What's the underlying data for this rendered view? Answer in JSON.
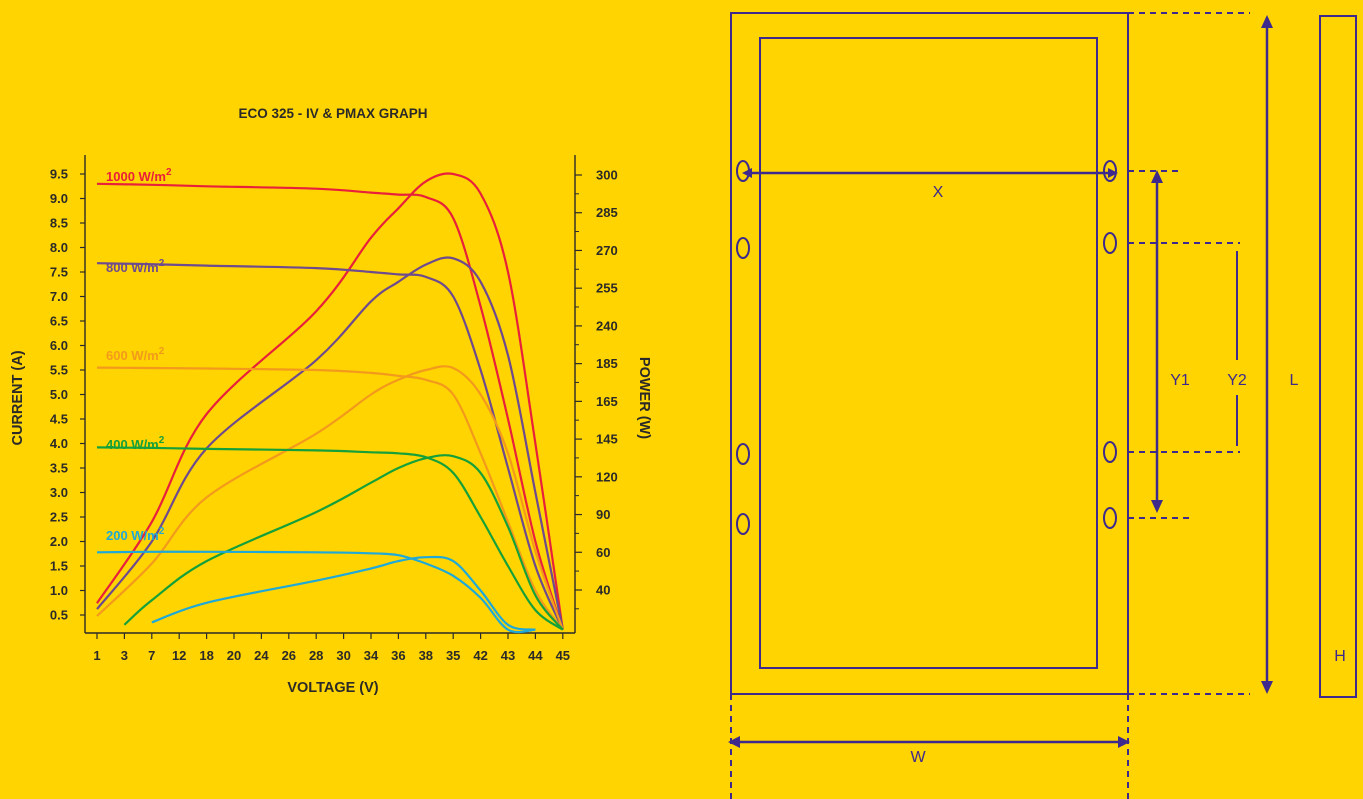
{
  "colors": {
    "background": "#ffd400",
    "ink": "#2b2a28",
    "diagram": "#3d2a8c",
    "irradiance_1000": "#e8203b",
    "irradiance_800": "#6e4a8e",
    "irradiance_600": "#f39a1c",
    "irradiance_400": "#15a03a",
    "irradiance_200": "#1ea9d8"
  },
  "chart_data": {
    "type": "line",
    "title": "ECO 325 - IV & PMAX GRAPH",
    "xlabel": "VOLTAGE (V)",
    "ylabel": "CURRENT (A)",
    "y2label": "POWER (W)",
    "x_ticks": [
      "1",
      "3",
      "7",
      "12",
      "18",
      "20",
      "24",
      "26",
      "28",
      "30",
      "34",
      "36",
      "38",
      "35",
      "42",
      "43",
      "44",
      "45"
    ],
    "y_ticks": [
      "0.5",
      "1.0",
      "1.5",
      "2.0",
      "2.5",
      "3.0",
      "3.5",
      "4.0",
      "4.5",
      "5.0",
      "5.5",
      "6.0",
      "6.5",
      "7.0",
      "7.5",
      "8.0",
      "8.5",
      "9.0",
      "9.5"
    ],
    "y_range": [
      0.5,
      9.5
    ],
    "y2_ticks": [
      "40",
      "60",
      "90",
      "120",
      "145",
      "165",
      "185",
      "240",
      "255",
      "270",
      "285",
      "300"
    ],
    "grid": false,
    "series": [
      {
        "name": "1000 W/m",
        "superscript": "2",
        "color_key": "irradiance_1000",
        "iv": [
          [
            1,
            9.3
          ],
          [
            7,
            9.28
          ],
          [
            18,
            9.25
          ],
          [
            28,
            9.2
          ],
          [
            34,
            9.12
          ],
          [
            36,
            9.08
          ],
          [
            38,
            9.03
          ],
          [
            35,
            8.6
          ],
          [
            42,
            6.8
          ],
          [
            43,
            4.5
          ],
          [
            44,
            2.0
          ],
          [
            45,
            0.2
          ]
        ],
        "power": [
          [
            1,
            0.74
          ],
          [
            7,
            2.4
          ],
          [
            18,
            4.6
          ],
          [
            28,
            6.7
          ],
          [
            34,
            8.2
          ],
          [
            36,
            8.8
          ],
          [
            38,
            9.35
          ],
          [
            35,
            9.5
          ],
          [
            42,
            9.1
          ],
          [
            43,
            7.5
          ],
          [
            44,
            4.0
          ],
          [
            45,
            0.2
          ]
        ]
      },
      {
        "name": "800 W/m",
        "superscript": "2",
        "color_key": "irradiance_800",
        "iv": [
          [
            1,
            7.68
          ],
          [
            7,
            7.66
          ],
          [
            18,
            7.63
          ],
          [
            28,
            7.58
          ],
          [
            34,
            7.5
          ],
          [
            36,
            7.45
          ],
          [
            38,
            7.4
          ],
          [
            35,
            7.0
          ],
          [
            42,
            5.5
          ],
          [
            43,
            3.5
          ],
          [
            44,
            1.5
          ],
          [
            45,
            0.2
          ]
        ],
        "power": [
          [
            1,
            0.62
          ],
          [
            7,
            2.0
          ],
          [
            18,
            3.9
          ],
          [
            28,
            5.7
          ],
          [
            34,
            6.9
          ],
          [
            36,
            7.3
          ],
          [
            38,
            7.65
          ],
          [
            35,
            7.78
          ],
          [
            42,
            7.3
          ],
          [
            43,
            5.8
          ],
          [
            44,
            3.0
          ],
          [
            45,
            0.2
          ]
        ]
      },
      {
        "name": "600 W/m",
        "superscript": "2",
        "color_key": "irradiance_600",
        "iv": [
          [
            1,
            5.55
          ],
          [
            7,
            5.54
          ],
          [
            18,
            5.53
          ],
          [
            28,
            5.5
          ],
          [
            34,
            5.44
          ],
          [
            36,
            5.38
          ],
          [
            38,
            5.3
          ],
          [
            35,
            5.0
          ],
          [
            42,
            3.8
          ],
          [
            43,
            2.4
          ],
          [
            44,
            1.0
          ],
          [
            45,
            0.15
          ]
        ],
        "power": [
          [
            1,
            0.48
          ],
          [
            7,
            1.55
          ],
          [
            18,
            2.9
          ],
          [
            28,
            4.2
          ],
          [
            34,
            5.0
          ],
          [
            36,
            5.3
          ],
          [
            38,
            5.5
          ],
          [
            35,
            5.54
          ],
          [
            42,
            5.0
          ],
          [
            43,
            3.8
          ],
          [
            44,
            1.8
          ],
          [
            45,
            0.15
          ]
        ]
      },
      {
        "name": "400 W/m",
        "superscript": "2",
        "color_key": "irradiance_400",
        "iv": [
          [
            1,
            3.92
          ],
          [
            7,
            3.91
          ],
          [
            18,
            3.89
          ],
          [
            28,
            3.86
          ],
          [
            34,
            3.82
          ],
          [
            36,
            3.8
          ],
          [
            38,
            3.72
          ],
          [
            35,
            3.4
          ],
          [
            42,
            2.5
          ],
          [
            43,
            1.5
          ],
          [
            44,
            0.6
          ],
          [
            45,
            0.1
          ]
        ],
        "power": [
          [
            3,
            0.3
          ],
          [
            7,
            0.8
          ],
          [
            18,
            1.6
          ],
          [
            28,
            2.6
          ],
          [
            34,
            3.2
          ],
          [
            36,
            3.5
          ],
          [
            38,
            3.7
          ],
          [
            35,
            3.74
          ],
          [
            42,
            3.4
          ],
          [
            43,
            2.3
          ],
          [
            44,
            0.9
          ],
          [
            45,
            0.1
          ]
        ]
      },
      {
        "name": "200 W/m",
        "superscript": "2",
        "color_key": "irradiance_200",
        "iv": [
          [
            1,
            1.78
          ],
          [
            7,
            1.79
          ],
          [
            18,
            1.79
          ],
          [
            28,
            1.78
          ],
          [
            34,
            1.76
          ],
          [
            36,
            1.72
          ],
          [
            38,
            1.55
          ],
          [
            35,
            1.3
          ],
          [
            42,
            0.85
          ],
          [
            43,
            0.2
          ],
          [
            44,
            0.1
          ]
        ],
        "power": [
          [
            7,
            0.35
          ],
          [
            18,
            0.75
          ],
          [
            28,
            1.2
          ],
          [
            34,
            1.45
          ],
          [
            36,
            1.6
          ],
          [
            38,
            1.68
          ],
          [
            35,
            1.6
          ],
          [
            42,
            1.0
          ],
          [
            43,
            0.3
          ],
          [
            44,
            0.2
          ]
        ]
      }
    ]
  },
  "diagram": {
    "labels": {
      "x": "X",
      "y1": "Y1",
      "y2": "Y2",
      "l": "L",
      "w": "W",
      "h": "H"
    }
  }
}
